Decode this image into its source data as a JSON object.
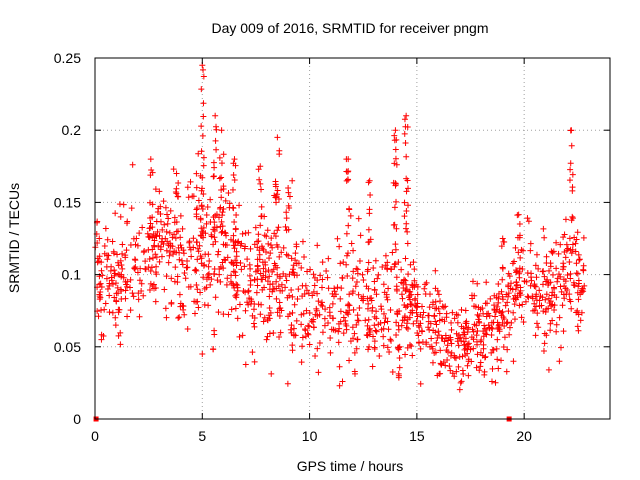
{
  "chart_data": {
    "type": "scatter",
    "title": "Day 009 of 2016, SRMTID for receiver pngm",
    "xlabel": "GPS time / hours",
    "ylabel": "SRMTID / TECUs",
    "xlim": [
      0,
      24
    ],
    "ylim": [
      0,
      0.25
    ],
    "x_ticks": [
      0,
      5,
      10,
      15,
      20
    ],
    "x_tick_labels": [
      "0",
      "5",
      "10",
      "15",
      "20"
    ],
    "y_ticks": [
      0,
      0.05,
      0.1,
      0.15,
      0.2,
      0.25
    ],
    "y_tick_labels": [
      "0",
      "0.05",
      "0.1",
      "0.15",
      "0.2",
      "0.25"
    ],
    "grid": true,
    "marker": "plus",
    "series_color": "#ff0000",
    "axis_color": "#000000",
    "grid_color": "#a0a0a0",
    "zero_points": [
      {
        "x": 0.05,
        "y": 0
      },
      {
        "x": 19.3,
        "y": 0
      }
    ],
    "trend": [
      {
        "x": 0.0,
        "y": 0.1,
        "spread": 0.025
      },
      {
        "x": 1.0,
        "y": 0.095,
        "spread": 0.025
      },
      {
        "x": 2.0,
        "y": 0.105,
        "spread": 0.03
      },
      {
        "x": 3.0,
        "y": 0.125,
        "spread": 0.03
      },
      {
        "x": 4.0,
        "y": 0.11,
        "spread": 0.03
      },
      {
        "x": 5.0,
        "y": 0.12,
        "spread": 0.035
      },
      {
        "x": 6.0,
        "y": 0.115,
        "spread": 0.035
      },
      {
        "x": 7.0,
        "y": 0.095,
        "spread": 0.03
      },
      {
        "x": 8.0,
        "y": 0.1,
        "spread": 0.03
      },
      {
        "x": 9.0,
        "y": 0.095,
        "spread": 0.03
      },
      {
        "x": 10.0,
        "y": 0.08,
        "spread": 0.025
      },
      {
        "x": 11.0,
        "y": 0.075,
        "spread": 0.025
      },
      {
        "x": 12.0,
        "y": 0.08,
        "spread": 0.03
      },
      {
        "x": 13.0,
        "y": 0.075,
        "spread": 0.025
      },
      {
        "x": 14.0,
        "y": 0.08,
        "spread": 0.03
      },
      {
        "x": 15.0,
        "y": 0.075,
        "spread": 0.025
      },
      {
        "x": 16.0,
        "y": 0.06,
        "spread": 0.02
      },
      {
        "x": 17.0,
        "y": 0.055,
        "spread": 0.02
      },
      {
        "x": 18.0,
        "y": 0.06,
        "spread": 0.02
      },
      {
        "x": 19.0,
        "y": 0.065,
        "spread": 0.02
      },
      {
        "x": 20.0,
        "y": 0.1,
        "spread": 0.025
      },
      {
        "x": 21.0,
        "y": 0.08,
        "spread": 0.025
      },
      {
        "x": 22.0,
        "y": 0.095,
        "spread": 0.03
      },
      {
        "x": 22.8,
        "y": 0.1,
        "spread": 0.025
      }
    ],
    "x_range_points": [
      0.0,
      22.8
    ],
    "point_count": 1400,
    "spikes": [
      {
        "x": 2.6,
        "y_from": 0.13,
        "y_to": 0.18
      },
      {
        "x": 3.8,
        "y_from": 0.12,
        "y_to": 0.17
      },
      {
        "x": 5.0,
        "y_from": 0.1,
        "y_to": 0.245
      },
      {
        "x": 5.6,
        "y_from": 0.13,
        "y_to": 0.21
      },
      {
        "x": 5.9,
        "y_from": 0.12,
        "y_to": 0.2
      },
      {
        "x": 6.5,
        "y_from": 0.12,
        "y_to": 0.18
      },
      {
        "x": 7.7,
        "y_from": 0.11,
        "y_to": 0.175
      },
      {
        "x": 8.5,
        "y_from": 0.11,
        "y_to": 0.195
      },
      {
        "x": 9.0,
        "y_from": 0.11,
        "y_to": 0.16
      },
      {
        "x": 11.8,
        "y_from": 0.1,
        "y_to": 0.18
      },
      {
        "x": 12.8,
        "y_from": 0.1,
        "y_to": 0.165
      },
      {
        "x": 14.0,
        "y_from": 0.08,
        "y_to": 0.2
      },
      {
        "x": 14.5,
        "y_from": 0.09,
        "y_to": 0.21
      },
      {
        "x": 14.2,
        "y_from": 0.02,
        "y_to": 0.05
      },
      {
        "x": 19.0,
        "y_from": 0.09,
        "y_to": 0.125
      },
      {
        "x": 19.8,
        "y_from": 0.1,
        "y_to": 0.135
      },
      {
        "x": 22.2,
        "y_from": 0.12,
        "y_to": 0.2
      }
    ],
    "samples": [
      {
        "x": 0.2,
        "y": 0.125
      },
      {
        "x": 0.3,
        "y": 0.055
      },
      {
        "x": 0.5,
        "y": 0.08
      },
      {
        "x": 1.2,
        "y": 0.14
      },
      {
        "x": 2.0,
        "y": 0.12
      },
      {
        "x": 4.0,
        "y": 0.08
      },
      {
        "x": 5.0,
        "y": 0.045
      },
      {
        "x": 11.4,
        "y": 0.023
      },
      {
        "x": 17.4,
        "y": 0.03
      },
      {
        "x": 18.5,
        "y": 0.026
      },
      {
        "x": 19.5,
        "y": 0.04
      }
    ]
  }
}
